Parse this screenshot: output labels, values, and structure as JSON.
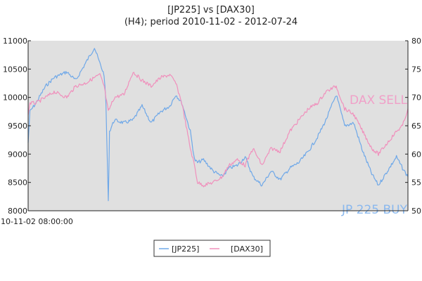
{
  "chart_data": {
    "type": "line",
    "title": "[JP225] vs [DAX30]",
    "subtitle": "(H4); period 2010-11-02 - 2012-07-24",
    "x_start_label": "10-11-02 08:00:00",
    "left_axis": {
      "ylim": [
        8000,
        11000
      ],
      "ticks": [
        8000,
        8500,
        9000,
        9500,
        10000,
        10500,
        11000
      ]
    },
    "right_axis": {
      "ylim": [
        50,
        80
      ],
      "ticks": [
        50,
        55,
        60,
        65,
        70,
        75,
        80
      ]
    },
    "grid": false,
    "legend_position": "bottom-center",
    "background": "#e0e0e0",
    "annotations": [
      {
        "text": "DAX SELL",
        "color": "#f0a0c8"
      },
      {
        "text": "JP 225 BUY",
        "color": "#8ab8ee"
      }
    ],
    "series": [
      {
        "name": "[JP225]",
        "axis": "left",
        "color": "#6fa8e8",
        "x": [
          "2010-11-02",
          "2010-11-05",
          "2010-11-15",
          "2010-12-01",
          "2010-12-15",
          "2011-01-05",
          "2011-01-20",
          "2011-02-05",
          "2011-02-20",
          "2011-03-01",
          "2011-03-08",
          "2011-03-11",
          "2011-03-15",
          "2011-03-17",
          "2011-03-25",
          "2011-04-10",
          "2011-04-25",
          "2011-05-10",
          "2011-05-25",
          "2011-06-10",
          "2011-06-25",
          "2011-07-05",
          "2011-07-15",
          "2011-07-29",
          "2011-08-05",
          "2011-08-10",
          "2011-08-20",
          "2011-09-05",
          "2011-09-20",
          "2011-10-01",
          "2011-10-15",
          "2011-10-28",
          "2011-11-10",
          "2011-11-25",
          "2011-12-10",
          "2011-12-25",
          "2012-01-10",
          "2012-01-25",
          "2012-02-10",
          "2012-02-25",
          "2012-03-10",
          "2012-03-27",
          "2012-04-10",
          "2012-04-25",
          "2012-05-10",
          "2012-05-25",
          "2012-06-05",
          "2012-06-20",
          "2012-07-05",
          "2012-07-15",
          "2012-07-24"
        ],
        "y": [
          9200,
          9750,
          9900,
          10200,
          10350,
          10450,
          10300,
          10600,
          10880,
          10600,
          10400,
          9900,
          8150,
          9400,
          9600,
          9550,
          9600,
          9850,
          9550,
          9750,
          9850,
          10050,
          9900,
          9400,
          8900,
          8850,
          8900,
          8700,
          8600,
          8750,
          8800,
          8950,
          8600,
          8450,
          8700,
          8550,
          8750,
          8850,
          9050,
          9300,
          9600,
          10050,
          9500,
          9550,
          9050,
          8650,
          8450,
          8700,
          8950,
          8750,
          8600
        ]
      },
      {
        "name": "[DAX30]",
        "axis": "right",
        "color": "#f090bc",
        "x": [
          "2010-11-02",
          "2010-11-05",
          "2010-11-15",
          "2010-12-01",
          "2010-12-15",
          "2011-01-05",
          "2011-01-20",
          "2011-02-05",
          "2011-02-20",
          "2011-03-01",
          "2011-03-08",
          "2011-03-11",
          "2011-03-15",
          "2011-03-17",
          "2011-03-25",
          "2011-04-10",
          "2011-04-25",
          "2011-05-10",
          "2011-05-25",
          "2011-06-10",
          "2011-06-25",
          "2011-07-05",
          "2011-07-15",
          "2011-07-29",
          "2011-08-05",
          "2011-08-10",
          "2011-08-20",
          "2011-09-05",
          "2011-09-20",
          "2011-10-01",
          "2011-10-15",
          "2011-10-28",
          "2011-11-10",
          "2011-11-25",
          "2011-12-10",
          "2011-12-25",
          "2012-01-10",
          "2012-01-25",
          "2012-02-10",
          "2012-02-25",
          "2012-03-10",
          "2012-03-27",
          "2012-04-10",
          "2012-04-25",
          "2012-05-10",
          "2012-05-25",
          "2012-06-05",
          "2012-06-20",
          "2012-07-05",
          "2012-07-15",
          "2012-07-24"
        ],
        "y": [
          67,
          69,
          69,
          70,
          71,
          70,
          72,
          72.5,
          73.5,
          74,
          72,
          70,
          67.5,
          68,
          70,
          70.5,
          74.5,
          73,
          72,
          73.5,
          74,
          72.5,
          69,
          61,
          58,
          55,
          54.5,
          55,
          56,
          58,
          59,
          58,
          61,
          58,
          61,
          60.5,
          64,
          66,
          68,
          69,
          71,
          72,
          68,
          67,
          64,
          61,
          60,
          62,
          64,
          65,
          68
        ]
      }
    ]
  }
}
